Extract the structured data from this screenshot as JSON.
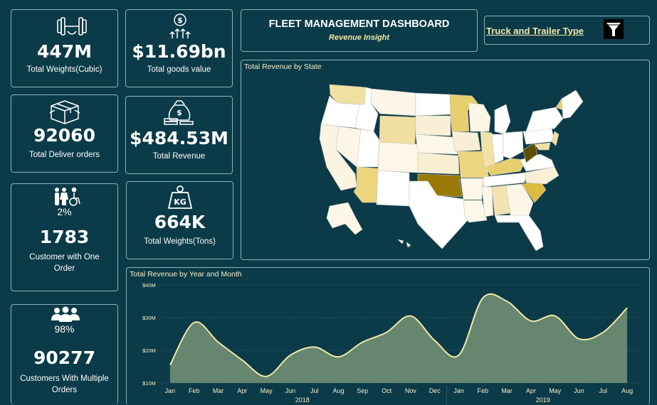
{
  "header": {
    "title": "FLEET MANAGEMENT DASHBOARD",
    "subtitle": "Revenue Insight"
  },
  "filter": {
    "label": "Truck and Trailer Type",
    "icon": "filter-funnel-icon"
  },
  "kpis": {
    "weights_cubic": {
      "value": "447M",
      "label": "Total Weights(Cubic)",
      "icon": "dumbbell-icon"
    },
    "goods_value": {
      "value": "$11.69bn",
      "label": "Total goods value",
      "icon": "dollar-growth-icon"
    },
    "deliver_orders": {
      "value": "92060",
      "label": "Total Deliver orders",
      "icon": "boxes-icon"
    },
    "total_revenue": {
      "value": "$484.53M",
      "label": "Total Revenue",
      "icon": "money-bag-icon"
    },
    "one_order": {
      "pct": "2%",
      "value": "1783",
      "label_line1": "Customer with One",
      "label_line2": "Order",
      "icon": "people-icon"
    },
    "weights_tons": {
      "value": "664K",
      "label": "Total Weights(Tons)",
      "icon": "kg-weight-icon",
      "icon_text": "KG"
    },
    "multiple_orders": {
      "pct": "98%",
      "value": "90277",
      "label_line1": "Customers With Multiple",
      "label_line2": "Orders",
      "icon": "group-icon"
    }
  },
  "map_panel": {
    "title": "Total Revenue by State",
    "colors": {
      "low": "#fdf6de",
      "mid": "#e8cf6e",
      "high": "#b08d10",
      "max": "#5f5000"
    }
  },
  "chart_data": {
    "type": "area",
    "title": "Total Revenue by Year and Month",
    "xlabel": "",
    "ylabel": "",
    "x": [
      "Jan",
      "Feb",
      "Mar",
      "Apr",
      "May",
      "Jun",
      "Jul",
      "Aug",
      "Sep",
      "Oct",
      "Nov",
      "Dec",
      "Jan",
      "Feb",
      "Mar",
      "Apr",
      "May",
      "Jun",
      "Jul",
      "Aug"
    ],
    "year_groups": [
      {
        "label": "2018",
        "months": 12
      },
      {
        "label": "2019",
        "months": 8
      }
    ],
    "values": [
      15.5,
      28.5,
      22.5,
      17.0,
      12.0,
      18.5,
      21.0,
      18.0,
      22.5,
      25.5,
      30.5,
      23.0,
      18.5,
      36.0,
      35.0,
      29.0,
      30.5,
      23.5,
      25.5,
      33.0
    ],
    "ylim": [
      10,
      40
    ],
    "yticks": [
      10,
      20,
      30,
      40
    ],
    "ytick_labels": [
      "$10M",
      "$20M",
      "$30M",
      "$40M"
    ],
    "grid": true,
    "colors": {
      "fill": "#6b8a72",
      "line": "#f3e9a6"
    }
  }
}
